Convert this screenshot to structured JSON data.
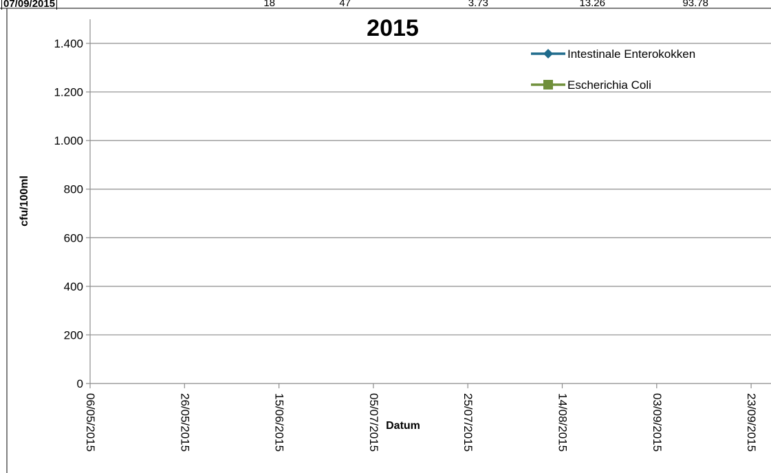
{
  "table_row": {
    "date": "07/09/2015",
    "values": [
      "18",
      "47",
      "3.73",
      "13.26",
      "93.78"
    ]
  },
  "chart_data": {
    "type": "line",
    "title": "2015",
    "xlabel": "Datum",
    "ylabel": "cfu/100ml",
    "ylim": [
      0,
      1400
    ],
    "yticks": [
      0,
      200,
      400,
      600,
      800,
      1000,
      1200,
      1400
    ],
    "ytick_labels": [
      "0",
      "200",
      "400",
      "600",
      "800",
      "1.000",
      "1.200",
      "1.400"
    ],
    "xtick_labels": [
      "06/05/2015",
      "26/05/2015",
      "15/06/2015",
      "05/07/2015",
      "25/07/2015",
      "14/08/2015",
      "03/09/2015",
      "23/09/2015"
    ],
    "grid": true,
    "legend_position": "top-right",
    "series": [
      {
        "name": "Intestinale Enterokokken",
        "color": "#1f6b8c",
        "marker": "diamond",
        "values": []
      },
      {
        "name": "Escherichia Coli",
        "color": "#6f8f3a",
        "marker": "square",
        "values": []
      }
    ]
  }
}
